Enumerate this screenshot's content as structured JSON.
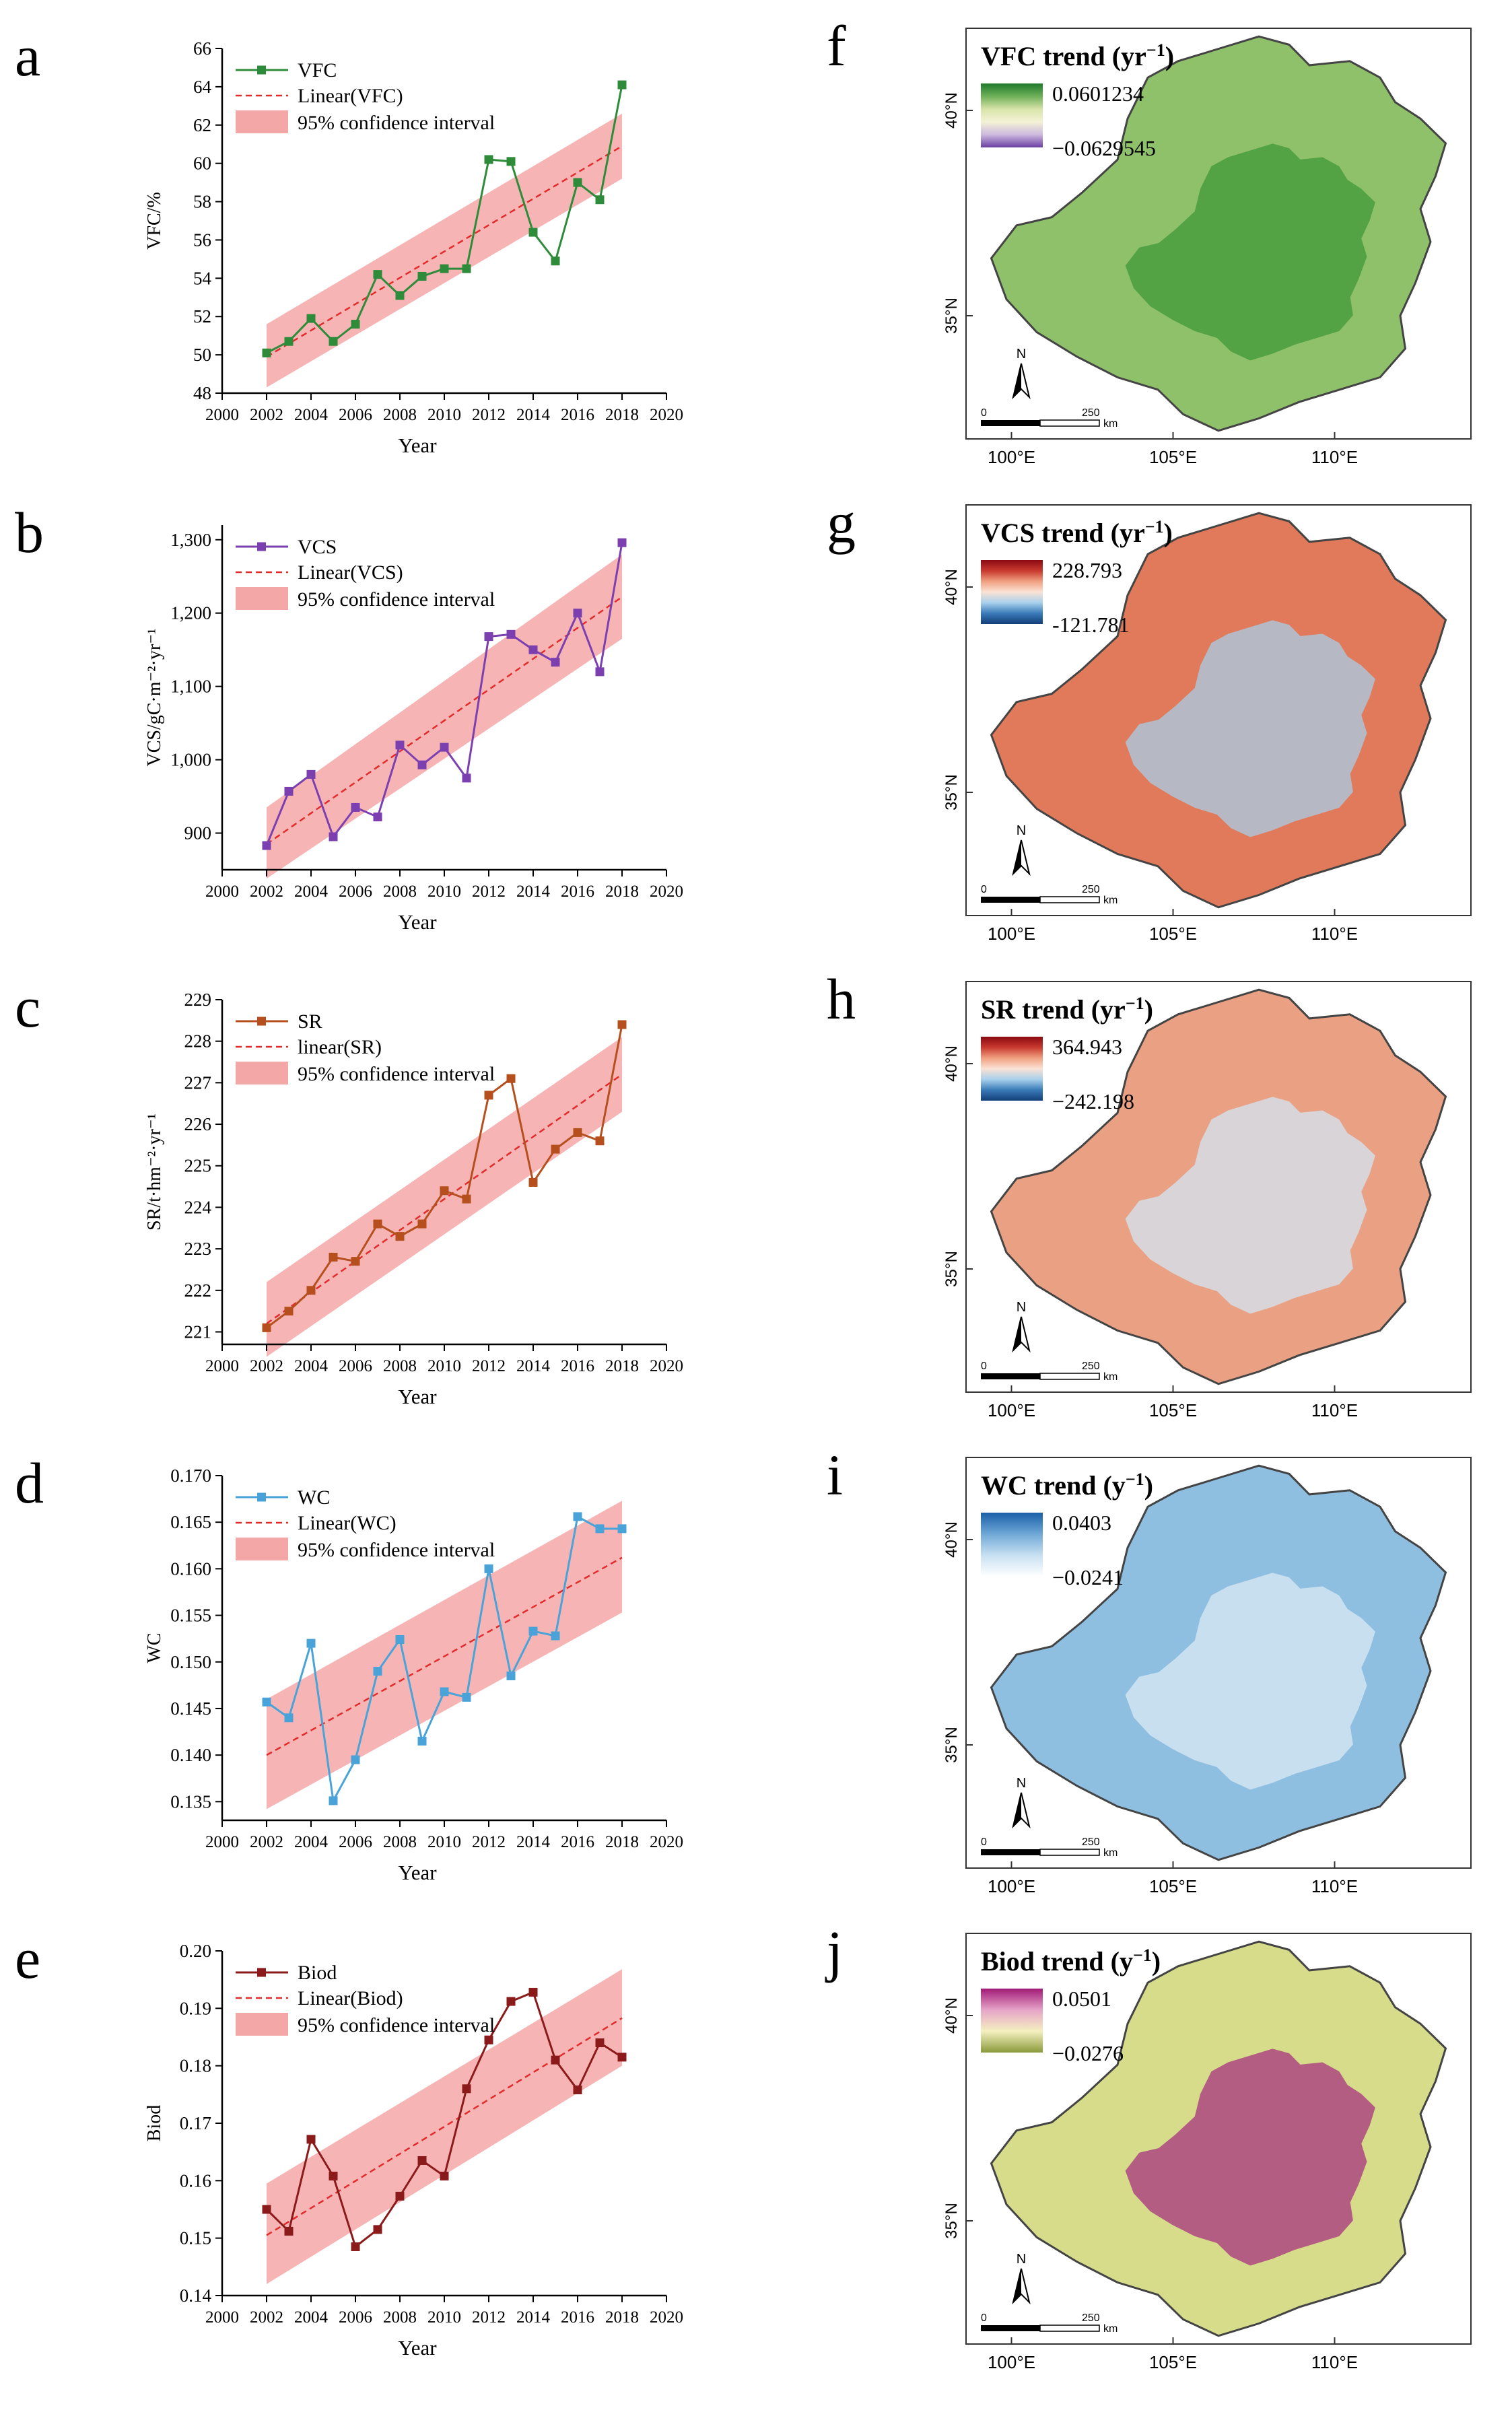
{
  "panels": {
    "left": [
      {
        "letter": "a",
        "type": "line",
        "marker": "square",
        "color": "#2e8b3a",
        "series_label": "VFC",
        "fit_label": "Linear(VFC)",
        "ci_label": "95% confidence interval",
        "ylabel": "VFC/%",
        "xlabel": "Year",
        "xlim": [
          2000,
          2020
        ],
        "xticks": [
          2000,
          2002,
          2004,
          2006,
          2008,
          2010,
          2012,
          2014,
          2016,
          2018,
          2020
        ],
        "ylim": [
          48,
          66
        ],
        "yticks": [
          48,
          50,
          52,
          54,
          56,
          58,
          60,
          62,
          64,
          66
        ],
        "ytick_labels": [
          "48",
          "50",
          "52",
          "54",
          "56",
          "58",
          "60",
          "62",
          "64",
          "66"
        ],
        "x": [
          2002,
          2003,
          2004,
          2005,
          2006,
          2007,
          2008,
          2009,
          2010,
          2011,
          2012,
          2013,
          2014,
          2015,
          2016,
          2017,
          2018
        ],
        "values": [
          50.1,
          50.7,
          51.9,
          50.7,
          51.6,
          54.2,
          53.1,
          54.1,
          54.5,
          54.5,
          60.2,
          60.1,
          56.4,
          54.9,
          59.0,
          58.1,
          64.1
        ],
        "fit": [
          49.9,
          60.9
        ],
        "ci_upper": [
          51.6,
          62.6
        ],
        "ci_lower": [
          48.3,
          59.2
        ]
      },
      {
        "letter": "b",
        "type": "line",
        "marker": "square",
        "color": "#7b3fb0",
        "series_label": "VCS",
        "fit_label": "Linear(VCS)",
        "ci_label": "95% confidence interval",
        "ylabel": "VCS/gC·m⁻²·yr⁻¹",
        "xlabel": "Year",
        "xlim": [
          2000,
          2020
        ],
        "xticks": [
          2000,
          2002,
          2004,
          2006,
          2008,
          2010,
          2012,
          2014,
          2016,
          2018,
          2020
        ],
        "ylim": [
          850,
          1320
        ],
        "yticks": [
          900,
          1000,
          1100,
          1200,
          1300
        ],
        "ytick_labels": [
          "900",
          "1,000",
          "1,100",
          "1,200",
          "1,300"
        ],
        "x": [
          2002,
          2003,
          2004,
          2005,
          2006,
          2007,
          2008,
          2009,
          2010,
          2011,
          2012,
          2013,
          2014,
          2015,
          2016,
          2017,
          2018
        ],
        "values": [
          883,
          957,
          980,
          895,
          935,
          922,
          1020,
          993,
          1017,
          975,
          1168,
          1171,
          1150,
          1133,
          1200,
          1120,
          1296
        ],
        "fit": [
          885,
          1222
        ],
        "ci_upper": [
          935,
          1280
        ],
        "ci_lower": [
          838,
          1165
        ]
      },
      {
        "letter": "c",
        "type": "line",
        "marker": "square",
        "color": "#b5501e",
        "series_label": "SR",
        "fit_label": "linear(SR)",
        "ci_label": "95% confidence interval",
        "ylabel": "SR/t·hm⁻²·yr⁻¹",
        "xlabel": "Year",
        "xlim": [
          2000,
          2020
        ],
        "xticks": [
          2000,
          2002,
          2004,
          2006,
          2008,
          2010,
          2012,
          2014,
          2016,
          2018,
          2020
        ],
        "ylim": [
          220.7,
          229
        ],
        "yticks": [
          221,
          222,
          223,
          224,
          225,
          226,
          227,
          228,
          229
        ],
        "ytick_labels": [
          "221",
          "222",
          "223",
          "224",
          "225",
          "226",
          "227",
          "228",
          "229"
        ],
        "x": [
          2002,
          2003,
          2004,
          2005,
          2006,
          2007,
          2008,
          2009,
          2010,
          2011,
          2012,
          2013,
          2014,
          2015,
          2016,
          2017,
          2018
        ],
        "values": [
          221.1,
          221.5,
          222.0,
          222.8,
          222.7,
          223.6,
          223.3,
          223.6,
          224.4,
          224.2,
          226.7,
          227.1,
          224.6,
          225.4,
          225.8,
          225.6,
          228.4
        ],
        "fit": [
          221.2,
          227.2
        ],
        "ci_upper": [
          222.2,
          228.1
        ],
        "ci_lower": [
          220.4,
          226.3
        ]
      },
      {
        "letter": "d",
        "type": "line",
        "marker": "square",
        "color": "#4aa3d8",
        "series_label": "WC",
        "fit_label": "Linear(WC)",
        "ci_label": "95% confidence interval",
        "ylabel": "WC",
        "xlabel": "Year",
        "xlim": [
          2000,
          2020
        ],
        "xticks": [
          2000,
          2002,
          2004,
          2006,
          2008,
          2010,
          2012,
          2014,
          2016,
          2018,
          2020
        ],
        "ylim": [
          0.133,
          0.17
        ],
        "yticks": [
          0.135,
          0.14,
          0.145,
          0.15,
          0.155,
          0.16,
          0.165,
          0.17
        ],
        "ytick_labels": [
          "0.135",
          "0.140",
          "0.145",
          "0.150",
          "0.155",
          "0.160",
          "0.165",
          "0.170"
        ],
        "x": [
          2002,
          2003,
          2004,
          2005,
          2006,
          2007,
          2008,
          2009,
          2010,
          2011,
          2012,
          2013,
          2014,
          2015,
          2016,
          2017,
          2018
        ],
        "values": [
          0.1457,
          0.144,
          0.152,
          0.1351,
          0.1395,
          0.149,
          0.1524,
          0.1415,
          0.1468,
          0.1462,
          0.16,
          0.1485,
          0.1533,
          0.1528,
          0.1656,
          0.1643,
          0.1643
        ],
        "fit": [
          0.14,
          0.1612
        ],
        "ci_upper": [
          0.146,
          0.1673
        ],
        "ci_lower": [
          0.1342,
          0.1553
        ]
      },
      {
        "letter": "e",
        "type": "line",
        "marker": "square",
        "color": "#8b1a1a",
        "series_label": "Biod",
        "fit_label": "Linear(Biod)",
        "ci_label": "95% confidence interval",
        "ylabel": "Biod",
        "xlabel": "Year",
        "xlim": [
          2000,
          2020
        ],
        "xticks": [
          2000,
          2002,
          2004,
          2006,
          2008,
          2010,
          2012,
          2014,
          2016,
          2018,
          2020
        ],
        "ylim": [
          0.14,
          0.2
        ],
        "yticks": [
          0.14,
          0.15,
          0.16,
          0.17,
          0.18,
          0.19,
          0.2
        ],
        "ytick_labels": [
          "0.14",
          "0.15",
          "0.16",
          "0.17",
          "0.18",
          "0.19",
          "0.20"
        ],
        "x": [
          2002,
          2003,
          2004,
          2005,
          2006,
          2007,
          2008,
          2009,
          2010,
          2011,
          2012,
          2013,
          2014,
          2015,
          2016,
          2017,
          2018
        ],
        "values": [
          0.155,
          0.1512,
          0.1672,
          0.1608,
          0.1485,
          0.1515,
          0.1573,
          0.1635,
          0.1608,
          0.176,
          0.1845,
          0.1912,
          0.1928,
          0.181,
          0.1758,
          0.184,
          0.1815
        ],
        "fit": [
          0.1505,
          0.1883
        ],
        "ci_upper": [
          0.1595,
          0.1968
        ],
        "ci_lower": [
          0.142,
          0.18
        ]
      }
    ],
    "right": [
      {
        "letter": "f",
        "title": "VFC trend (yr",
        "sup": "−1",
        "close": ")",
        "max_label": "0.0601234",
        "min_label": "−0.0629545",
        "colors": [
          "#1d7a2a",
          "#6fb05a",
          "#d8e4a8",
          "#f4f2d6",
          "#cdb9de",
          "#6a3fa3"
        ],
        "fill": "#8fc06a",
        "fill2": "#3f9a3a"
      },
      {
        "letter": "g",
        "title": "VCS trend (yr",
        "sup": "−1",
        "close": ")",
        "max_label": "228.793",
        "min_label": "-121.781",
        "colors": [
          "#8b0a12",
          "#c83a2e",
          "#f0a080",
          "#fbe2d4",
          "#a8d0ec",
          "#3a7bb8",
          "#123e78"
        ],
        "fill": "#e07a5a",
        "fill2": "#a8cfe8"
      },
      {
        "letter": "h",
        "title": "SR trend (yr",
        "sup": "−1",
        "close": ")",
        "max_label": "364.943",
        "min_label": "−242.198",
        "colors": [
          "#8b0a12",
          "#c83a2e",
          "#f0a080",
          "#fbe2d4",
          "#a8d0ec",
          "#3a7bb8",
          "#123e78"
        ],
        "fill": "#e9a083",
        "fill2": "#d2e6f4"
      },
      {
        "letter": "i",
        "title": "WC trend (y",
        "sup": "−1",
        "close": ")",
        "max_label": "0.0403",
        "min_label": "−0.0241",
        "colors": [
          "#1a5fa8",
          "#6ea8d6",
          "#c8e0f2",
          "#ffffff"
        ],
        "fill": "#8fbfe0",
        "fill2": "#dbeaf6"
      },
      {
        "letter": "j",
        "title": "Biod trend (y",
        "sup": "−1",
        "close": ")",
        "max_label": "0.0501",
        "min_label": "−0.0276",
        "colors": [
          "#a21a78",
          "#e6a4c8",
          "#f4f0c0",
          "#8a9a3a"
        ],
        "fill": "#d6dc8a",
        "fill2": "#a8337f"
      }
    ]
  },
  "map_common": {
    "lat_labels": [
      "40°N",
      "35°N"
    ],
    "lon_labels": [
      "100°E",
      "105°E",
      "110°E"
    ],
    "north_label": "N",
    "scale_zero": "0",
    "scale_max": "250",
    "scale_unit": "km"
  },
  "chart_data": [
    {
      "type": "line",
      "title": "a",
      "xlabel": "Year",
      "ylabel": "VFC/%",
      "ylim": [
        48,
        66
      ],
      "x": [
        2002,
        2003,
        2004,
        2005,
        2006,
        2007,
        2008,
        2009,
        2010,
        2011,
        2012,
        2013,
        2014,
        2015,
        2016,
        2017,
        2018
      ],
      "series": [
        {
          "name": "VFC",
          "values": [
            50.1,
            50.7,
            51.9,
            50.7,
            51.6,
            54.2,
            53.1,
            54.1,
            54.5,
            54.5,
            60.2,
            60.1,
            56.4,
            54.9,
            59.0,
            58.1,
            64.1
          ]
        }
      ]
    },
    {
      "type": "line",
      "title": "b",
      "xlabel": "Year",
      "ylabel": "VCS/gC·m⁻²·yr⁻¹",
      "ylim": [
        850,
        1320
      ],
      "x": [
        2002,
        2003,
        2004,
        2005,
        2006,
        2007,
        2008,
        2009,
        2010,
        2011,
        2012,
        2013,
        2014,
        2015,
        2016,
        2017,
        2018
      ],
      "series": [
        {
          "name": "VCS",
          "values": [
            883,
            957,
            980,
            895,
            935,
            922,
            1020,
            993,
            1017,
            975,
            1168,
            1171,
            1150,
            1133,
            1200,
            1120,
            1296
          ]
        }
      ]
    },
    {
      "type": "line",
      "title": "c",
      "xlabel": "Year",
      "ylabel": "SR/t·hm⁻²·yr⁻¹",
      "ylim": [
        220.7,
        229
      ],
      "x": [
        2002,
        2003,
        2004,
        2005,
        2006,
        2007,
        2008,
        2009,
        2010,
        2011,
        2012,
        2013,
        2014,
        2015,
        2016,
        2017,
        2018
      ],
      "series": [
        {
          "name": "SR",
          "values": [
            221.1,
            221.5,
            222.0,
            222.8,
            222.7,
            223.6,
            223.3,
            223.6,
            224.4,
            224.2,
            226.7,
            227.1,
            224.6,
            225.4,
            225.8,
            225.6,
            228.4
          ]
        }
      ]
    },
    {
      "type": "line",
      "title": "d",
      "xlabel": "Year",
      "ylabel": "WC",
      "ylim": [
        0.133,
        0.17
      ],
      "x": [
        2002,
        2003,
        2004,
        2005,
        2006,
        2007,
        2008,
        2009,
        2010,
        2011,
        2012,
        2013,
        2014,
        2015,
        2016,
        2017,
        2018
      ],
      "series": [
        {
          "name": "WC",
          "values": [
            0.1457,
            0.144,
            0.152,
            0.1351,
            0.1395,
            0.149,
            0.1524,
            0.1415,
            0.1468,
            0.1462,
            0.16,
            0.1485,
            0.1533,
            0.1528,
            0.1656,
            0.1643,
            0.1643
          ]
        }
      ]
    },
    {
      "type": "line",
      "title": "e",
      "xlabel": "Year",
      "ylabel": "Biod",
      "ylim": [
        0.14,
        0.2
      ],
      "x": [
        2002,
        2003,
        2004,
        2005,
        2006,
        2007,
        2008,
        2009,
        2010,
        2011,
        2012,
        2013,
        2014,
        2015,
        2016,
        2017,
        2018
      ],
      "series": [
        {
          "name": "Biod",
          "values": [
            0.155,
            0.1512,
            0.1672,
            0.1608,
            0.1485,
            0.1515,
            0.1573,
            0.1635,
            0.1608,
            0.176,
            0.1845,
            0.1912,
            0.1928,
            0.181,
            0.1758,
            0.184,
            0.1815
          ]
        }
      ]
    }
  ]
}
